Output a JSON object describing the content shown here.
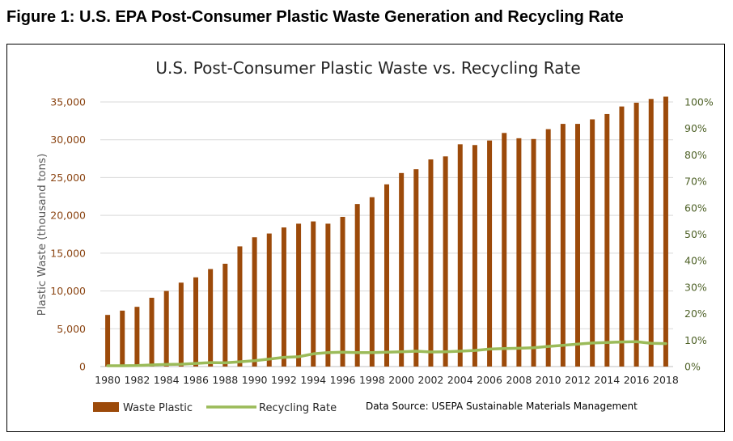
{
  "figure_title": "Figure 1: U.S. EPA Post-Consumer Plastic Waste Generation and Recycling Rate",
  "chart_data": {
    "type": "bar",
    "title": "U.S. Post-Consumer Plastic Waste vs. Recycling Rate",
    "ylabel": "Plastic Waste  (thousand tons)",
    "xlabel": "",
    "ylim": [
      0,
      35000
    ],
    "y2lim": [
      0,
      100
    ],
    "grid": true,
    "y_ticks": [
      "0",
      "5,000",
      "10,000",
      "15,000",
      "20,000",
      "25,000",
      "30,000",
      "35,000"
    ],
    "y_tick_values": [
      0,
      5000,
      10000,
      15000,
      20000,
      25000,
      30000,
      35000
    ],
    "y2_ticks": [
      "0%",
      "10%",
      "20%",
      "30%",
      "40%",
      "50%",
      "60%",
      "70%",
      "80%",
      "90%",
      "100%"
    ],
    "y2_tick_values": [
      0,
      10,
      20,
      30,
      40,
      50,
      60,
      70,
      80,
      90,
      100
    ],
    "x_tick_labels": [
      "1980",
      "1982",
      "1984",
      "1986",
      "1988",
      "1990",
      "1992",
      "1994",
      "1996",
      "1998",
      "2000",
      "2002",
      "2004",
      "2006",
      "2008",
      "2010",
      "2012",
      "2014",
      "2016",
      "2018"
    ],
    "categories": [
      1980,
      1981,
      1982,
      1983,
      1984,
      1985,
      1986,
      1987,
      1988,
      1989,
      1990,
      1991,
      1992,
      1993,
      1994,
      1995,
      1996,
      1997,
      1998,
      1999,
      2000,
      2001,
      2002,
      2003,
      2004,
      2005,
      2006,
      2007,
      2008,
      2009,
      2010,
      2011,
      2012,
      2013,
      2014,
      2015,
      2016,
      2017,
      2018
    ],
    "series": [
      {
        "name": "Waste Plastic",
        "type": "bar",
        "axis": "left",
        "color": "#9C4A0A",
        "values": [
          6830,
          7400,
          7900,
          9100,
          10000,
          11100,
          11800,
          12900,
          13600,
          15900,
          17100,
          17600,
          18400,
          18900,
          19200,
          18900,
          19800,
          21500,
          22400,
          24100,
          25600,
          26100,
          27400,
          27800,
          29400,
          29300,
          29900,
          30900,
          30200,
          30100,
          31400,
          32100,
          32100,
          32700,
          33400,
          34400,
          34900,
          35400,
          35700
        ]
      },
      {
        "name": "Recycling Rate",
        "type": "line",
        "axis": "right",
        "color": "#9BBB59",
        "values": [
          0.3,
          0.3,
          0.4,
          0.6,
          0.8,
          0.9,
          1.2,
          1.5,
          1.4,
          1.8,
          2.2,
          2.8,
          3.5,
          3.7,
          4.8,
          5.3,
          5.4,
          5.3,
          5.3,
          5.4,
          5.6,
          5.8,
          5.5,
          5.6,
          5.8,
          6.1,
          6.6,
          6.8,
          6.9,
          7.1,
          7.6,
          8.0,
          8.5,
          8.9,
          9.1,
          9.3,
          9.4,
          8.8,
          8.7
        ]
      }
    ],
    "source_note": "Data Source: USEPA Sustainable Materials Management"
  }
}
